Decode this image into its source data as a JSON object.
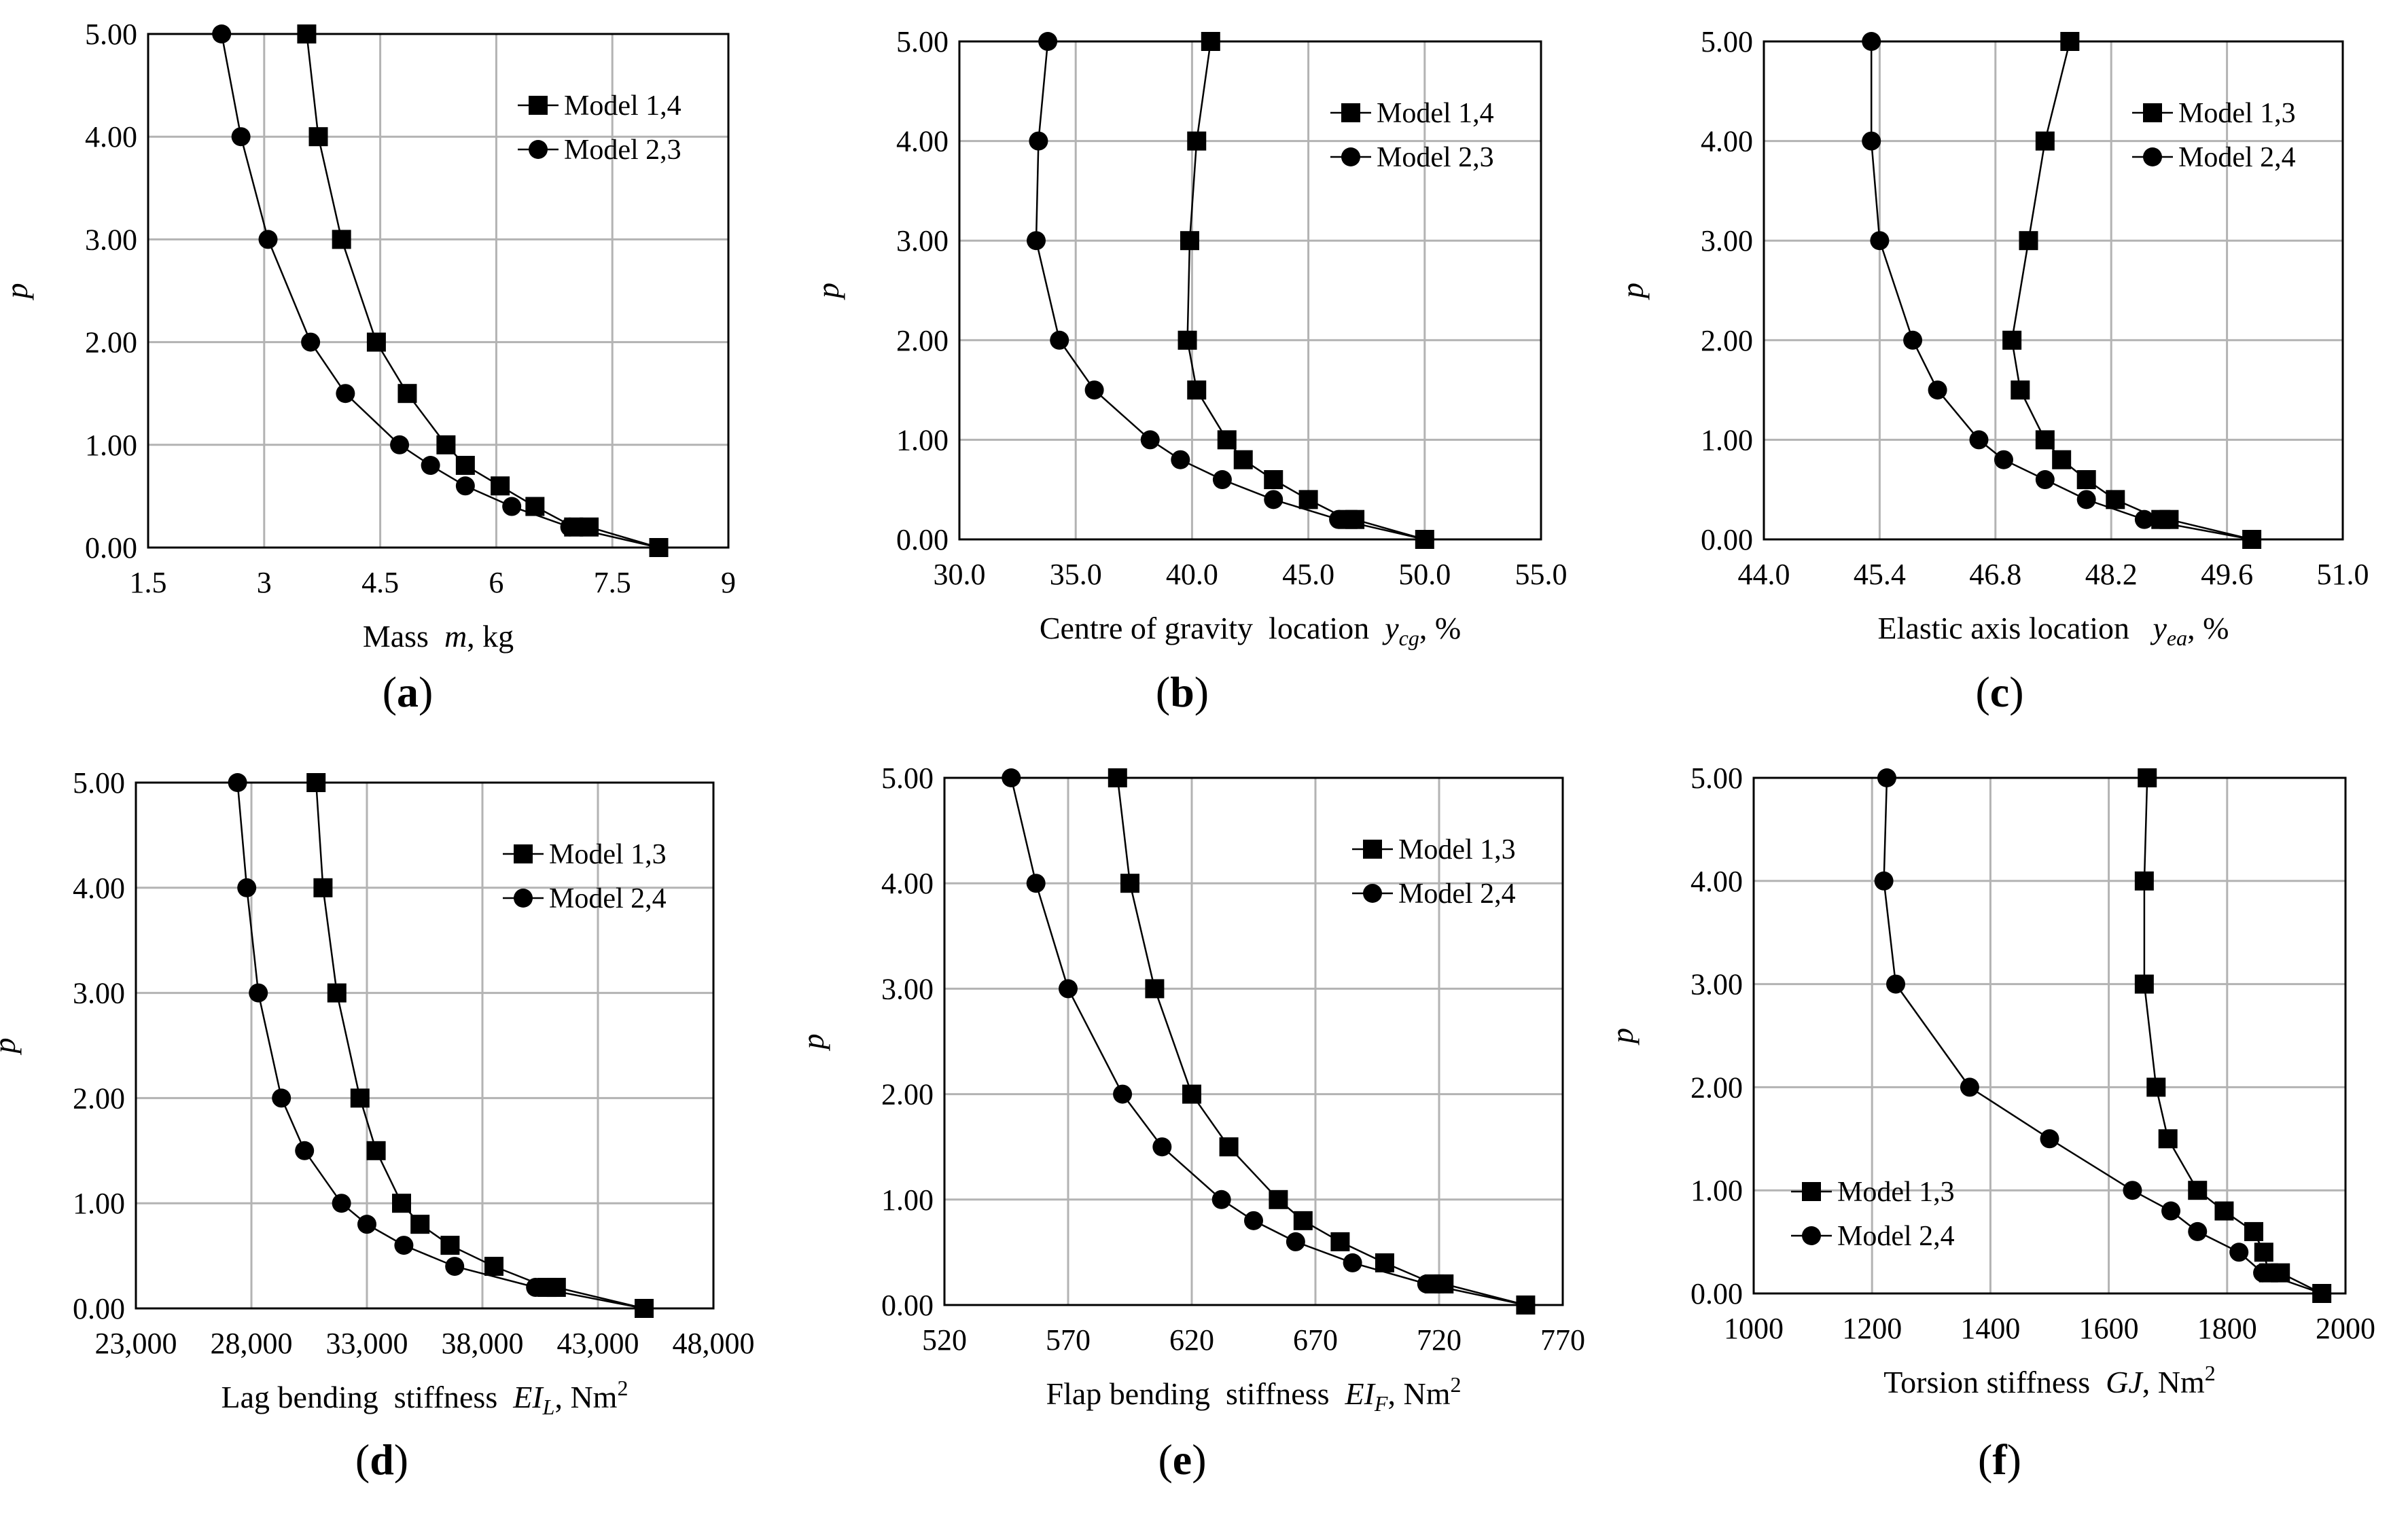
{
  "colors": {
    "line": "#000000",
    "grid": "#b3b3b3",
    "background": "#ffffff"
  },
  "chart_data": [
    {
      "id": "a",
      "type": "line",
      "caption_letter": "a",
      "xlabel": {
        "pre": "Mass  ",
        "var": "m",
        "post": ", kg"
      },
      "ylabel": "p",
      "xlim": [
        1.5,
        9
      ],
      "ylim": [
        0,
        5
      ],
      "xticks": [
        "1.5",
        "3",
        "4.5",
        "6",
        "7.5",
        "9"
      ],
      "yticks": [
        "0.00",
        "1.00",
        "2.00",
        "3.00",
        "4.00",
        "5.00"
      ],
      "legend": {
        "position": "upper-right"
      },
      "series": [
        {
          "name": "Model 1,4",
          "marker": "square",
          "x": [
            8.1,
            7.2,
            7.0,
            6.5,
            6.05,
            5.6,
            5.35,
            4.85,
            4.45,
            4.0,
            3.7,
            3.55
          ],
          "y": [
            0,
            0.2,
            0.2,
            0.4,
            0.6,
            0.8,
            1.0,
            1.5,
            2.0,
            3.0,
            4.0,
            5.0
          ]
        },
        {
          "name": "Model 2,3",
          "marker": "circle",
          "x": [
            8.1,
            6.95,
            6.2,
            5.6,
            5.15,
            4.75,
            4.05,
            3.6,
            3.05,
            2.7,
            2.45
          ],
          "y": [
            0,
            0.2,
            0.4,
            0.6,
            0.8,
            1.0,
            1.5,
            2.0,
            3.0,
            4.0,
            5.0
          ]
        }
      ]
    },
    {
      "id": "b",
      "type": "line",
      "caption_letter": "b",
      "xlabel": {
        "pre": "Centre of gravity  location  ",
        "var": "y",
        "sub": "cg",
        "post": ", %"
      },
      "ylabel": "p",
      "xlim": [
        30,
        55
      ],
      "ylim": [
        0,
        5
      ],
      "xticks": [
        "30.0",
        "35.0",
        "40.0",
        "45.0",
        "50.0",
        "55.0"
      ],
      "yticks": [
        "0.00",
        "1.00",
        "2.00",
        "3.00",
        "4.00",
        "5.00"
      ],
      "legend": {
        "position": "upper-right"
      },
      "series": [
        {
          "name": "Model 1,4",
          "marker": "square",
          "x": [
            50.0,
            47.0,
            46.7,
            45.0,
            43.5,
            42.2,
            41.5,
            40.2,
            39.8,
            39.9,
            40.2,
            40.8
          ],
          "y": [
            0,
            0.2,
            0.2,
            0.4,
            0.6,
            0.8,
            1.0,
            1.5,
            2.0,
            3.0,
            4.0,
            5.0
          ]
        },
        {
          "name": "Model 2,3",
          "marker": "circle",
          "x": [
            50.0,
            46.3,
            43.5,
            41.3,
            39.5,
            38.2,
            35.8,
            34.3,
            33.3,
            33.4,
            33.8
          ],
          "y": [
            0,
            0.2,
            0.4,
            0.6,
            0.8,
            1.0,
            1.5,
            2.0,
            3.0,
            4.0,
            5.0
          ]
        }
      ]
    },
    {
      "id": "c",
      "type": "line",
      "caption_letter": "c",
      "xlabel": {
        "pre": "Elastic axis location   ",
        "var": "y",
        "sub": "ea",
        "post": ", %"
      },
      "ylabel": "p",
      "xlim": [
        44,
        51
      ],
      "ylim": [
        0,
        5
      ],
      "xticks": [
        "44.0",
        "45.4",
        "46.8",
        "48.2",
        "49.6",
        "51.0"
      ],
      "yticks": [
        "0.00",
        "1.00",
        "2.00",
        "3.00",
        "4.00",
        "5.00"
      ],
      "legend": {
        "position": "upper-right"
      },
      "series": [
        {
          "name": "Model 1,3",
          "marker": "square",
          "x": [
            49.9,
            48.9,
            48.8,
            48.25,
            47.9,
            47.6,
            47.4,
            47.1,
            47.0,
            47.2,
            47.4,
            47.7
          ],
          "y": [
            0,
            0.2,
            0.2,
            0.4,
            0.6,
            0.8,
            1.0,
            1.5,
            2.0,
            3.0,
            4.0,
            5.0
          ]
        },
        {
          "name": "Model 2,4",
          "marker": "circle",
          "x": [
            49.9,
            48.6,
            47.9,
            47.4,
            46.9,
            46.6,
            46.1,
            45.8,
            45.4,
            45.3,
            45.3
          ],
          "y": [
            0,
            0.2,
            0.4,
            0.6,
            0.8,
            1.0,
            1.5,
            2.0,
            3.0,
            4.0,
            5.0
          ]
        }
      ]
    },
    {
      "id": "d",
      "type": "line",
      "caption_letter": "d",
      "xlabel": {
        "pre": "Lag bending  stiffness  ",
        "var": "EI",
        "sub": "L",
        "post": ", Nm",
        "sup": "2"
      },
      "ylabel": "p",
      "xlim": [
        23000,
        48000
      ],
      "ylim": [
        0,
        5
      ],
      "xticks": [
        "23,000",
        "28,000",
        "33,000",
        "38,000",
        "43,000",
        "48,000"
      ],
      "yticks": [
        "0.00",
        "1.00",
        "2.00",
        "3.00",
        "4.00",
        "5.00"
      ],
      "legend": {
        "position": "upper-right"
      },
      "series": [
        {
          "name": "Model 1,3",
          "marker": "square",
          "x": [
            45000,
            41200,
            40800,
            38500,
            36600,
            35300,
            34500,
            33400,
            32700,
            31700,
            31100,
            30800
          ],
          "y": [
            0,
            0.2,
            0.2,
            0.4,
            0.6,
            0.8,
            1.0,
            1.5,
            2.0,
            3.0,
            4.0,
            5.0
          ]
        },
        {
          "name": "Model 2,4",
          "marker": "circle",
          "x": [
            45000,
            40300,
            36800,
            34600,
            33000,
            31900,
            30300,
            29300,
            28300,
            27800,
            27400
          ],
          "y": [
            0,
            0.2,
            0.4,
            0.6,
            0.8,
            1.0,
            1.5,
            2.0,
            3.0,
            4.0,
            5.0
          ]
        }
      ]
    },
    {
      "id": "e",
      "type": "line",
      "caption_letter": "e",
      "xlabel": {
        "pre": "Flap bending  stiffness  ",
        "var": "EI",
        "sub": "F",
        "post": ", Nm",
        "sup": "2"
      },
      "ylabel": "p",
      "xlim": [
        520,
        770
      ],
      "ylim": [
        0,
        5
      ],
      "xticks": [
        "520",
        "570",
        "620",
        "670",
        "720",
        "770"
      ],
      "yticks": [
        "0.00",
        "1.00",
        "2.00",
        "3.00",
        "4.00",
        "5.00"
      ],
      "legend": {
        "position": "upper-right"
      },
      "series": [
        {
          "name": "Model 1,3",
          "marker": "square",
          "x": [
            755,
            722,
            718,
            698,
            680,
            665,
            655,
            635,
            620,
            605,
            595,
            590
          ],
          "y": [
            0,
            0.2,
            0.2,
            0.4,
            0.6,
            0.8,
            1.0,
            1.5,
            2.0,
            3.0,
            4.0,
            5.0
          ]
        },
        {
          "name": "Model 2,4",
          "marker": "circle",
          "x": [
            755,
            715,
            685,
            662,
            645,
            632,
            608,
            592,
            570,
            557,
            547
          ],
          "y": [
            0,
            0.2,
            0.4,
            0.6,
            0.8,
            1.0,
            1.5,
            2.0,
            3.0,
            4.0,
            5.0
          ]
        }
      ]
    },
    {
      "id": "f",
      "type": "line",
      "caption_letter": "f",
      "xlabel": {
        "pre": "Torsion stiffness  ",
        "var": "GJ",
        "post": ", Nm",
        "sup": "2"
      },
      "ylabel": "p",
      "xlim": [
        1000,
        2000
      ],
      "ylim": [
        0,
        5
      ],
      "xticks": [
        "1000",
        "1200",
        "1400",
        "1600",
        "1800",
        "2000"
      ],
      "yticks": [
        "0.00",
        "1.00",
        "2.00",
        "3.00",
        "4.00",
        "5.00"
      ],
      "legend": {
        "position": "lower-left"
      },
      "series": [
        {
          "name": "Model 1,3",
          "marker": "square",
          "x": [
            1960,
            1890,
            1870,
            1862,
            1845,
            1795,
            1750,
            1700,
            1680,
            1660,
            1660,
            1665
          ],
          "y": [
            0,
            0.2,
            0.2,
            0.4,
            0.6,
            0.8,
            1.0,
            1.5,
            2.0,
            3.0,
            4.0,
            5.0
          ]
        },
        {
          "name": "Model 2,4",
          "marker": "circle",
          "x": [
            1960,
            1860,
            1820,
            1750,
            1705,
            1640,
            1500,
            1365,
            1240,
            1220,
            1225
          ],
          "y": [
            0,
            0.2,
            0.4,
            0.6,
            0.8,
            1.0,
            1.5,
            2.0,
            3.0,
            4.0,
            5.0
          ]
        }
      ]
    }
  ]
}
